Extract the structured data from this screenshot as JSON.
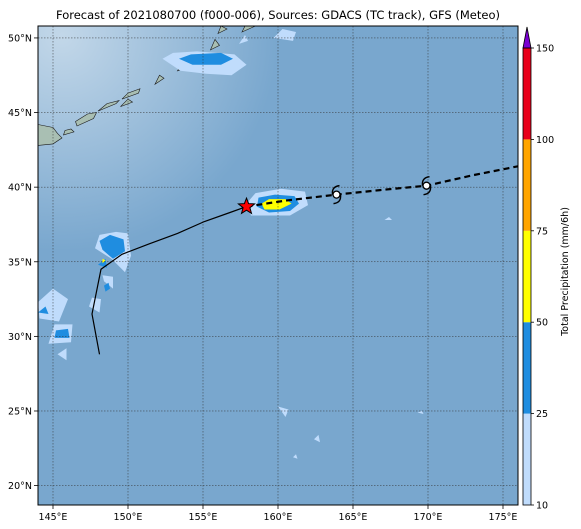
{
  "title": "Forecast of 2021080700 (f000-006), Sources: GDACS (TC track), GFS (Meteo)",
  "map": {
    "lon_range": [
      144,
      176
    ],
    "lat_range": [
      18.7,
      50.8
    ],
    "lon_ticks": [
      {
        "v": 145,
        "label": "145°E"
      },
      {
        "v": 150,
        "label": "150°E"
      },
      {
        "v": 155,
        "label": "155°E"
      },
      {
        "v": 160,
        "label": "160°E"
      },
      {
        "v": 165,
        "label": "165°E"
      },
      {
        "v": 170,
        "label": "170°E"
      },
      {
        "v": 175,
        "label": "175°E"
      }
    ],
    "lat_ticks": [
      {
        "v": 20,
        "label": "20°N"
      },
      {
        "v": 25,
        "label": "25°N"
      },
      {
        "v": 30,
        "label": "30°N"
      },
      {
        "v": 35,
        "label": "35°N"
      },
      {
        "v": 40,
        "label": "40°N"
      },
      {
        "v": 45,
        "label": "45°N"
      },
      {
        "v": 50,
        "label": "50°N"
      }
    ],
    "ocean_color": "#79a7ce",
    "land_color": "#a9bfb3",
    "grid": true
  },
  "colorbar": {
    "label": "Total Precipitation (mm/6h)",
    "ticks": [
      "10",
      "25",
      "50",
      "75",
      "100",
      "150"
    ],
    "colors": [
      "#c0dcfc",
      "#1f8de0",
      "#ffff00",
      "#ffa500",
      "#e8001a",
      "#7a00d0"
    ]
  },
  "track": {
    "past": [
      [
        148.1,
        28.8
      ],
      [
        147.6,
        31.5
      ],
      [
        148.2,
        34.5
      ],
      [
        149.6,
        35.5
      ],
      [
        151.4,
        36.2
      ],
      [
        153.3,
        36.9
      ],
      [
        155.1,
        37.7
      ],
      [
        156.8,
        38.3
      ],
      [
        157.9,
        38.7
      ]
    ],
    "current": [
      157.9,
      38.7
    ],
    "forecast": [
      [
        157.9,
        38.7
      ],
      [
        160.5,
        39.1
      ],
      [
        163.9,
        39.5
      ],
      [
        166.8,
        39.8
      ],
      [
        169.9,
        40.1
      ],
      [
        173.0,
        40.8
      ],
      [
        176.0,
        41.4
      ]
    ],
    "storm_symbols": [
      [
        163.9,
        39.5
      ],
      [
        169.9,
        40.1
      ]
    ]
  },
  "precip": [
    {
      "cls": 0,
      "shapes": [
        [
          [
            148.9,
            35.2
          ],
          [
            149.8,
            34.3
          ],
          [
            150.2,
            35.4
          ],
          [
            150.0,
            36.9
          ],
          [
            149.2,
            37.0
          ],
          [
            148.1,
            36.8
          ],
          [
            147.8,
            35.9
          ]
        ],
        [
          [
            148.4,
            33.7
          ],
          [
            149.0,
            33.2
          ],
          [
            149.0,
            34.0
          ],
          [
            148.3,
            34.1
          ]
        ],
        [
          [
            147.4,
            32.0
          ],
          [
            148.1,
            31.6
          ],
          [
            148.2,
            32.5
          ],
          [
            147.6,
            32.6
          ]
        ],
        [
          [
            144.1,
            31.2
          ],
          [
            145.4,
            31.0
          ],
          [
            146.0,
            32.5
          ],
          [
            145.0,
            33.2
          ],
          [
            144.0,
            32.3
          ]
        ],
        [
          [
            144.7,
            29.5
          ],
          [
            146.2,
            29.6
          ],
          [
            146.3,
            30.8
          ],
          [
            145.1,
            30.8
          ]
        ],
        [
          [
            145.3,
            28.8
          ],
          [
            145.9,
            28.4
          ],
          [
            145.9,
            29.2
          ]
        ],
        [
          [
            157.9,
            38.9
          ],
          [
            158.2,
            38.1
          ],
          [
            160.8,
            38.1
          ],
          [
            162.0,
            38.8
          ],
          [
            161.8,
            39.7
          ],
          [
            160.2,
            39.9
          ],
          [
            158.5,
            39.6
          ]
        ],
        [
          [
            152.3,
            48.6
          ],
          [
            153.5,
            47.8
          ],
          [
            155.2,
            47.6
          ],
          [
            156.9,
            47.5
          ],
          [
            157.9,
            48.2
          ],
          [
            157.1,
            48.9
          ],
          [
            154.6,
            49.1
          ],
          [
            153.0,
            49.0
          ]
        ],
        [
          [
            157.4,
            49.6
          ],
          [
            158.0,
            49.8
          ],
          [
            157.8,
            50.2
          ]
        ],
        [
          [
            159.7,
            50.0
          ],
          [
            161.0,
            49.8
          ],
          [
            161.2,
            50.4
          ],
          [
            160.3,
            50.6
          ]
        ],
        [
          [
            167.1,
            37.8
          ],
          [
            167.6,
            37.8
          ],
          [
            167.4,
            38.0
          ]
        ],
        [
          [
            169.3,
            24.9
          ],
          [
            169.7,
            24.8
          ],
          [
            169.6,
            25.0
          ]
        ],
        [
          [
            160.0,
            25.3
          ],
          [
            160.5,
            24.6
          ],
          [
            160.7,
            25.1
          ]
        ],
        [
          [
            162.4,
            23.1
          ],
          [
            162.8,
            22.9
          ],
          [
            162.7,
            23.4
          ]
        ],
        [
          [
            161.0,
            21.9
          ],
          [
            161.3,
            21.8
          ],
          [
            161.2,
            22.1
          ]
        ]
      ]
    },
    {
      "cls": 1,
      "shapes": [
        [
          [
            148.3,
            35.8
          ],
          [
            149.0,
            35.2
          ],
          [
            149.8,
            35.7
          ],
          [
            149.7,
            36.5
          ],
          [
            148.8,
            36.8
          ],
          [
            148.1,
            36.4
          ]
        ],
        [
          [
            148.0,
            34.8
          ],
          [
            148.6,
            34.6
          ],
          [
            148.5,
            35.2
          ]
        ],
        [
          [
            148.5,
            33.0
          ],
          [
            148.8,
            33.2
          ],
          [
            148.7,
            33.6
          ],
          [
            148.4,
            33.4
          ]
        ],
        [
          [
            144.0,
            31.6
          ],
          [
            144.7,
            31.5
          ],
          [
            144.5,
            32.0
          ]
        ],
        [
          [
            145.1,
            29.9
          ],
          [
            146.1,
            29.9
          ],
          [
            146.0,
            30.5
          ],
          [
            145.2,
            30.4
          ]
        ],
        [
          [
            158.6,
            38.7
          ],
          [
            159.4,
            38.3
          ],
          [
            160.8,
            38.4
          ],
          [
            161.4,
            38.9
          ],
          [
            161.1,
            39.4
          ],
          [
            159.8,
            39.5
          ],
          [
            158.7,
            39.3
          ]
        ],
        [
          [
            153.4,
            48.6
          ],
          [
            154.3,
            48.2
          ],
          [
            156.2,
            48.2
          ],
          [
            157.0,
            48.6
          ],
          [
            156.2,
            49.0
          ],
          [
            154.2,
            48.9
          ]
        ]
      ]
    },
    {
      "cls": 2,
      "shapes": [
        [
          [
            159.1,
            38.5
          ],
          [
            160.1,
            38.5
          ],
          [
            160.9,
            38.9
          ],
          [
            160.5,
            39.2
          ],
          [
            159.4,
            39.2
          ],
          [
            158.9,
            38.9
          ]
        ],
        [
          [
            148.3,
            34.9
          ],
          [
            148.5,
            35.1
          ],
          [
            148.3,
            35.2
          ]
        ]
      ]
    }
  ],
  "land": [
    {
      "shapes": [
        [
          [
            144,
            44.2
          ],
          [
            145.0,
            44.0
          ],
          [
            145.3,
            43.6
          ],
          [
            145.6,
            43.3
          ],
          [
            145.0,
            42.9
          ],
          [
            144,
            42.8
          ]
        ],
        [
          [
            145.7,
            43.5
          ],
          [
            146.4,
            43.7
          ],
          [
            146.2,
            43.9
          ],
          [
            145.8,
            43.8
          ]
        ],
        [
          [
            146.6,
            44.1
          ],
          [
            147.7,
            44.6
          ],
          [
            147.9,
            45.0
          ],
          [
            147.3,
            44.9
          ],
          [
            146.5,
            44.4
          ]
        ],
        [
          [
            148.0,
            45.1
          ],
          [
            149.2,
            45.6
          ],
          [
            149.4,
            45.8
          ],
          [
            148.6,
            45.6
          ]
        ],
        [
          [
            149.6,
            45.9
          ],
          [
            150.7,
            46.3
          ],
          [
            150.8,
            46.6
          ],
          [
            150.0,
            46.3
          ]
        ],
        [
          [
            151.8,
            46.9
          ],
          [
            152.4,
            47.3
          ],
          [
            152.1,
            47.5
          ]
        ],
        [
          [
            153.3,
            47.8
          ],
          [
            153.9,
            48.0
          ],
          [
            153.6,
            48.3
          ]
        ],
        [
          [
            155.5,
            49.2
          ],
          [
            156.1,
            49.5
          ],
          [
            155.8,
            49.9
          ]
        ],
        [
          [
            156.0,
            50.3
          ],
          [
            156.6,
            50.6
          ],
          [
            156.2,
            50.8
          ]
        ],
        [
          [
            157.6,
            50.4
          ],
          [
            158.5,
            50.8
          ],
          [
            157.8,
            50.8
          ]
        ],
        [
          [
            149.5,
            45.4
          ],
          [
            150.3,
            45.7
          ],
          [
            150.0,
            45.9
          ]
        ]
      ]
    }
  ]
}
